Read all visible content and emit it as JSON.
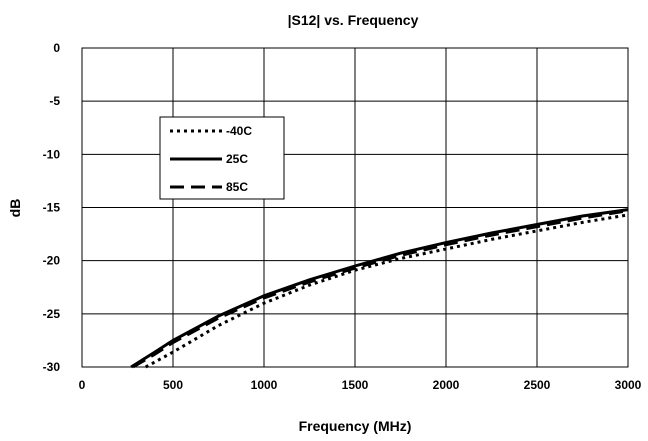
{
  "chart_data": {
    "type": "line",
    "title": "|S12| vs. Frequency",
    "xlabel": "Frequency (MHz)",
    "ylabel": "dB",
    "xlim": [
      0,
      3000
    ],
    "ylim": [
      -30,
      0
    ],
    "xticks": [
      0,
      500,
      1000,
      1500,
      2000,
      2500,
      3000
    ],
    "yticks": [
      0,
      -5,
      -10,
      -15,
      -20,
      -25,
      -30
    ],
    "grid": true,
    "legend_position": "upper-left",
    "series": [
      {
        "name": "-40C",
        "style": "dotted",
        "x": [
          350,
          500,
          750,
          1000,
          1250,
          1500,
          1750,
          2000,
          2250,
          2500,
          2750,
          3000
        ],
        "y": [
          -30,
          -28.6,
          -26.1,
          -24.0,
          -22.3,
          -20.9,
          -19.8,
          -18.9,
          -18.0,
          -17.2,
          -16.4,
          -15.7
        ]
      },
      {
        "name": "25C",
        "style": "solid",
        "x": [
          270,
          400,
          500,
          750,
          1000,
          1250,
          1500,
          1750,
          2000,
          2250,
          2500,
          2750,
          3000
        ],
        "y": [
          -30,
          -28.6,
          -27.5,
          -25.2,
          -23.3,
          -21.8,
          -20.5,
          -19.3,
          -18.3,
          -17.4,
          -16.6,
          -15.8,
          -15.2
        ]
      },
      {
        "name": "85C",
        "style": "dashed",
        "x": [
          280,
          400,
          500,
          750,
          1000,
          1250,
          1500,
          1750,
          2000,
          2250,
          2500,
          2750,
          3000
        ],
        "y": [
          -30,
          -28.8,
          -27.7,
          -25.4,
          -23.5,
          -22.0,
          -20.7,
          -19.5,
          -18.5,
          -17.6,
          -16.8,
          -16.0,
          -15.3
        ]
      }
    ]
  }
}
